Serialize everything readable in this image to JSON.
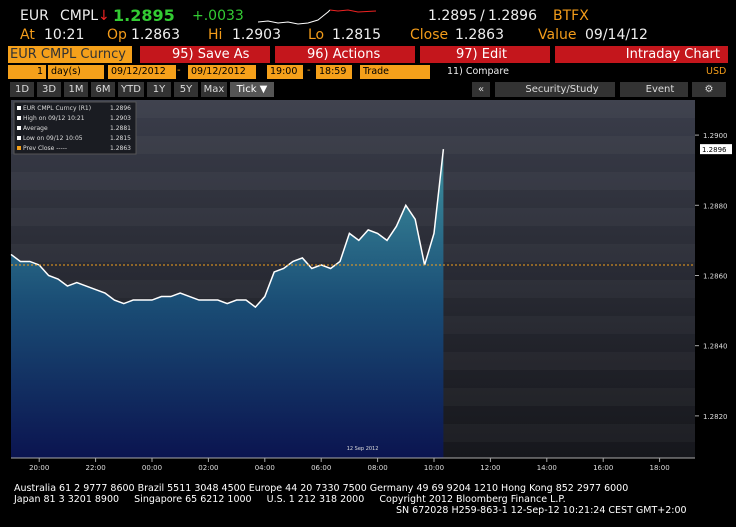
{
  "quote": {
    "ticker": "EUR",
    "source": "CMPL",
    "arrow": "↓",
    "last": "1.2895",
    "change": "+.0033",
    "bid": "1.2895",
    "sep": "/",
    "ask": "1.2896",
    "feed": "BTFX"
  },
  "stats": [
    {
      "label": "At",
      "value": "10:21"
    },
    {
      "label": "Op",
      "value": "1.2863"
    },
    {
      "label": "Hi",
      "value": "1.2903"
    },
    {
      "label": "Lo",
      "value": "1.2815"
    },
    {
      "label": "Close",
      "value": "1.2863"
    },
    {
      "label": "Value",
      "value": "09/14/12"
    }
  ],
  "toolbar": {
    "security": "EUR CMPL Curncy",
    "menus": [
      "95) Save As",
      "96) Actions",
      "97) Edit"
    ],
    "title": "Intraday Chart"
  },
  "controls": {
    "period": "1",
    "unit": "day(s)",
    "start_date": "09/12/2012",
    "dash": "-",
    "end_date": "09/12/2012",
    "start_time": "19:00",
    "end_time": "18:59",
    "event": "Trade",
    "compare": "11) Compare",
    "currency": "USD"
  },
  "ranges": [
    "1D",
    "3D",
    "1M",
    "6M",
    "YTD",
    "1Y",
    "5Y",
    "Max",
    "Tick ▼"
  ],
  "tools": [
    "«",
    "Security/Study",
    "Event"
  ],
  "chart_data": {
    "type": "area",
    "color": "#ffffff",
    "categories": [
      null,
      null,
      null,
      "20:00",
      null,
      null,
      null,
      null,
      null,
      "22:00",
      null,
      null,
      null,
      null,
      null,
      "00:00",
      null,
      null,
      null,
      null,
      null,
      "02:00",
      null,
      null,
      null,
      null,
      null,
      "04:00",
      null,
      null,
      null,
      null,
      null,
      "06:00",
      null,
      null,
      null,
      null,
      null,
      "08:00",
      null,
      null,
      null,
      null,
      null,
      "10:00",
      null,
      null,
      null,
      null,
      null,
      "12:00",
      null,
      null,
      null,
      null,
      null,
      "14:00",
      null,
      null,
      null,
      null,
      null,
      "16:00",
      null,
      null,
      null,
      null,
      null,
      "18:00",
      null,
      null
    ],
    "values": [
      1.2866,
      1.2864,
      1.2864,
      1.2863,
      1.286,
      1.2859,
      1.2857,
      1.2858,
      1.2857,
      1.2856,
      1.2855,
      1.2853,
      1.2852,
      1.2853,
      1.2853,
      1.2853,
      1.2854,
      1.2854,
      1.2855,
      1.2854,
      1.2853,
      1.2853,
      1.2853,
      1.2852,
      1.2853,
      1.2853,
      1.2851,
      1.2854,
      1.2861,
      1.2862,
      1.2864,
      1.2865,
      1.2862,
      1.2863,
      1.2862,
      1.2864,
      1.2872,
      1.287,
      1.2873,
      1.2872,
      1.287,
      1.2874,
      1.288,
      1.2876,
      1.2863,
      1.2872,
      1.2896,
      null,
      null,
      null,
      null,
      null,
      null,
      null,
      null,
      null,
      null,
      null,
      null,
      null,
      null,
      null,
      null,
      null,
      null,
      null,
      null,
      null,
      null,
      null,
      null,
      null
    ],
    "ylim": [
      1.2808,
      1.291
    ],
    "yticks": [
      {
        "value": 1.282,
        "label": "1.2820"
      },
      {
        "value": 1.284,
        "label": "1.2840"
      },
      {
        "value": 1.286,
        "label": "1.2860"
      },
      {
        "value": 1.288,
        "label": "1.2880"
      },
      {
        "value": 1.29,
        "label": "1.2900"
      }
    ],
    "prev_close": 1.2863,
    "last_tag": "1.2896",
    "date_label": "12 Sep 2012",
    "legend": [
      {
        "label": "EUR CMPL Curncy (R1)",
        "value": "1.2896"
      },
      {
        "label": "High on 09/12 10:21",
        "value": "1.2903"
      },
      {
        "label": "Average",
        "value": "1.2881"
      },
      {
        "label": "Low on 09/12 10:05",
        "value": "1.2815"
      },
      {
        "label": "Prev Close -----",
        "value": "1.2863"
      }
    ]
  },
  "footer": [
    "Australia 61 2 9777 8600 Brazil 5511 3048 4500 Europe 44 20 7330 7500 Germany 49 69 9204 1210 Hong Kong 852 2977 6000",
    "Japan 81 3 3201 8900     Singapore 65 6212 1000     U.S. 1 212 318 2000     Copyright 2012 Bloomberg Finance L.P.",
    "SN 672028 H259-863-1 12-Sep-12 10:21:24 CEST GMT+2:00"
  ]
}
